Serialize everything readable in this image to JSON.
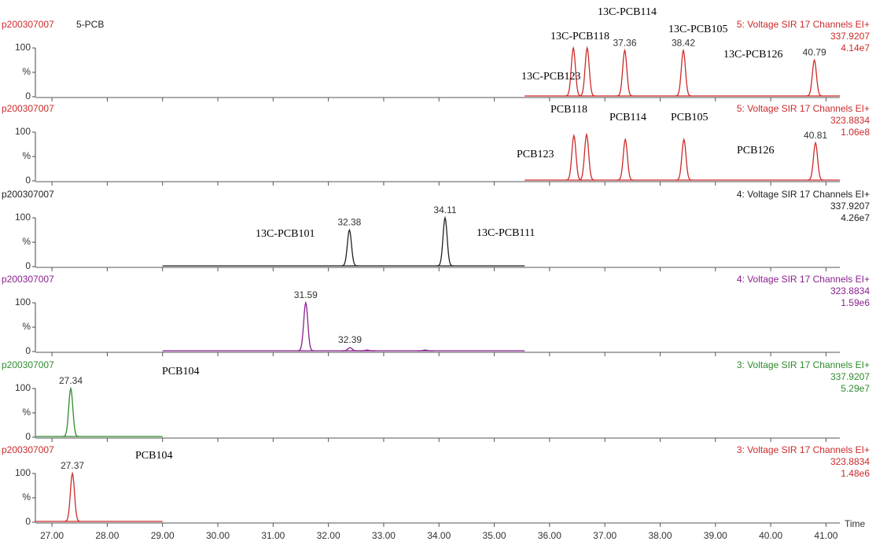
{
  "chart_data": [
    {
      "type": "chromatogram",
      "title": "p200307007",
      "subtitle": "5-PCB",
      "function": "5: Voltage SIR 17 Channels EI+",
      "mass": "337.9207",
      "intensity": "4.14e7",
      "color": "#cc2a2a",
      "xlim": [
        26.7,
        41.25
      ],
      "ylim": [
        0,
        100
      ],
      "yticks": [
        0,
        {
          "value": 50,
          "label": "%"
        },
        100
      ],
      "segment": [
        35.55,
        41.25
      ],
      "x": [
        36.43,
        36.68,
        37.36,
        38.42,
        40.79
      ],
      "values": [
        100,
        100,
        95,
        95,
        75
      ],
      "x_labels": [
        null,
        null,
        "37.36",
        "38.42",
        "40.79"
      ],
      "annotations": [
        "13C-PCB114",
        "13C-PCB118",
        "13C-PCB105",
        "13C-PCB126",
        "13C-PCB123"
      ]
    },
    {
      "type": "chromatogram",
      "title": "p200307007",
      "function": "5: Voltage SIR 17 Channels EI+",
      "mass": "323.8834",
      "intensity": "1.06e8",
      "color": "#cc2a2a",
      "xlim": [
        26.7,
        41.25
      ],
      "ylim": [
        0,
        100
      ],
      "yticks": [
        0,
        {
          "value": 50,
          "label": "%"
        },
        100
      ],
      "segment": [
        35.55,
        41.25
      ],
      "x": [
        36.44,
        36.67,
        37.37,
        38.43,
        40.81
      ],
      "values": [
        93,
        95,
        85,
        85,
        78
      ],
      "x_labels": [
        null,
        null,
        null,
        null,
        "40.81"
      ],
      "annotations": [
        "PCB118",
        "PCB114",
        "PCB105",
        "PCB126",
        "PCB123"
      ]
    },
    {
      "type": "chromatogram",
      "title": "p200307007",
      "function": "4: Voltage SIR 17 Channels EI+",
      "mass": "337.9207",
      "intensity": "4.26e7",
      "color": "#222222",
      "xlim": [
        26.7,
        41.25
      ],
      "ylim": [
        0,
        100
      ],
      "yticks": [
        0,
        {
          "value": 50,
          "label": "%"
        },
        100
      ],
      "segment": [
        29.0,
        35.55
      ],
      "x": [
        32.38,
        34.11
      ],
      "values": [
        75,
        100
      ],
      "x_labels": [
        "32.38",
        "34.11"
      ],
      "annotations": [
        "13C-PCB101",
        "13C-PCB111"
      ]
    },
    {
      "type": "chromatogram",
      "title": "p200307007",
      "function": "4: Voltage SIR 17 Channels EI+",
      "mass": "323.8834",
      "intensity": "1.59e6",
      "color": "#8a1f8f",
      "xlim": [
        26.7,
        41.25
      ],
      "ylim": [
        0,
        100
      ],
      "yticks": [
        0,
        {
          "value": 50,
          "label": "%"
        },
        100
      ],
      "segment": [
        29.0,
        35.55
      ],
      "x": [
        31.59,
        32.39,
        32.7,
        33.75
      ],
      "values": [
        100,
        8,
        3,
        3
      ],
      "x_labels": [
        "31.59",
        "32.39",
        null,
        null
      ],
      "annotations": []
    },
    {
      "type": "chromatogram",
      "title": "p200307007",
      "function": "3: Voltage SIR 17 Channels EI+",
      "mass": "337.9207",
      "intensity": "5.29e7",
      "color": "#2e8b2e",
      "xlim": [
        26.7,
        41.25
      ],
      "ylim": [
        0,
        100
      ],
      "yticks": [
        0,
        {
          "value": 50,
          "label": "%"
        },
        100
      ],
      "segment": [
        26.7,
        29.0
      ],
      "x": [
        27.34
      ],
      "values": [
        100
      ],
      "x_labels": [
        "27.34"
      ],
      "annotations": [
        "PCB104"
      ]
    },
    {
      "type": "chromatogram",
      "title": "p200307007",
      "function": "3: Voltage SIR 17 Channels EI+",
      "mass": "323.8834",
      "intensity": "1.48e6",
      "color": "#cc2a2a",
      "xlim": [
        26.7,
        41.25
      ],
      "ylim": [
        0,
        100
      ],
      "yticks": [
        0,
        {
          "value": 50,
          "label": "%"
        },
        100
      ],
      "segment": [
        26.7,
        29.0
      ],
      "x": [
        27.37
      ],
      "values": [
        100
      ],
      "x_labels": [
        "27.37"
      ],
      "annotations": [
        "PCB104"
      ],
      "xlabel": "Time",
      "xticks": [
        {
          "value": 27,
          "label": "27.00"
        },
        {
          "value": 28,
          "label": "28.00"
        },
        {
          "value": 29,
          "label": "29.00"
        },
        {
          "value": 30,
          "label": "30.00"
        },
        {
          "value": 31,
          "label": "31.00"
        },
        {
          "value": 32,
          "label": "32.00"
        },
        {
          "value": 33,
          "label": "33.00"
        },
        {
          "value": 34,
          "label": "34.00"
        },
        {
          "value": 35,
          "label": "35.00"
        },
        {
          "value": 36,
          "label": "36.00"
        },
        {
          "value": 37,
          "label": "37.00"
        },
        {
          "value": 38,
          "label": "38.00"
        },
        {
          "value": 39,
          "label": "39.00"
        },
        {
          "value": 40,
          "label": "40.00"
        },
        {
          "value": 41,
          "label": "41.00"
        }
      ]
    }
  ]
}
